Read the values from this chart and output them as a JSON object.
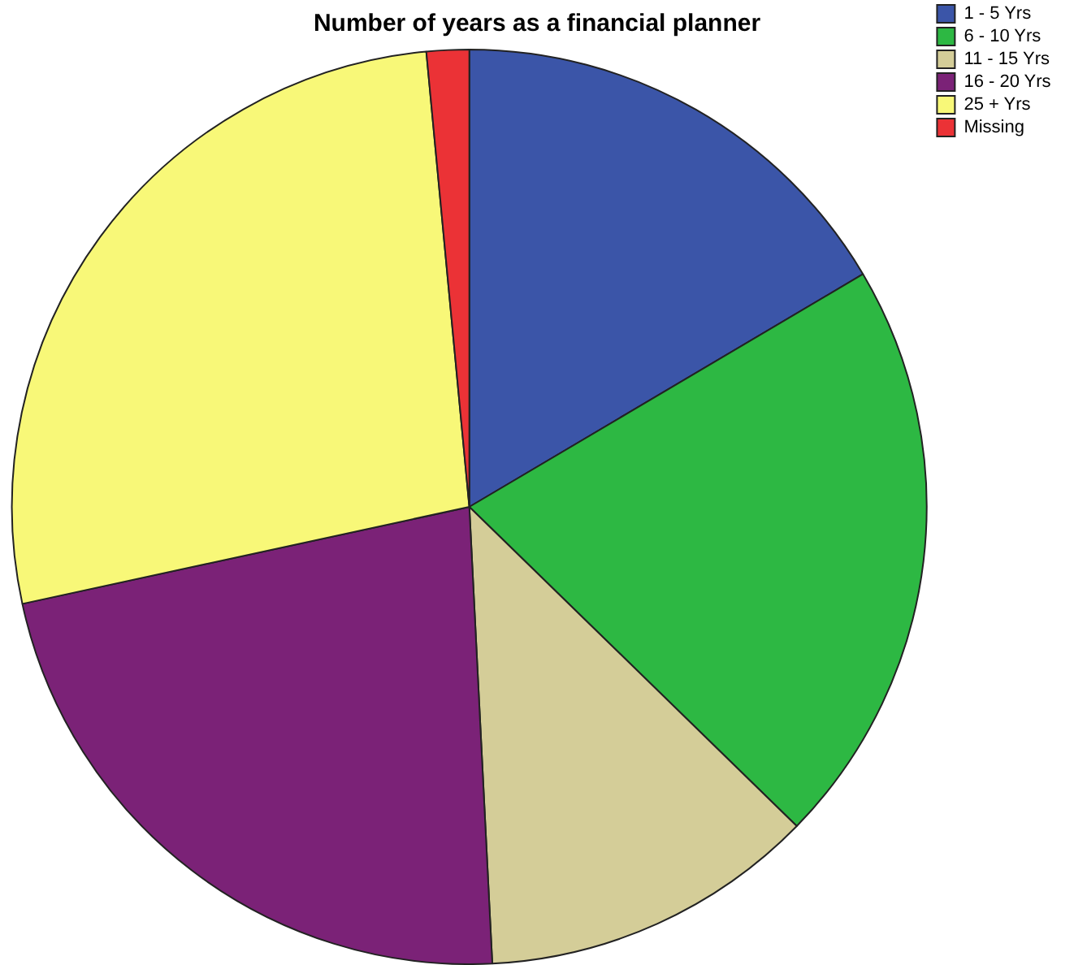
{
  "chart_data": {
    "type": "pie",
    "title": "Number of years as a financial planner",
    "categories": [
      "1 - 5 Yrs",
      "6 - 10 Yrs",
      "11 - 15 Yrs",
      "16 - 20 Yrs",
      "25 + Yrs",
      "Missing"
    ],
    "values": [
      16.5,
      20.8,
      11.9,
      22.4,
      26.9,
      1.5
    ],
    "colors": [
      "#3b55a8",
      "#2db843",
      "#d4cd98",
      "#7b2277",
      "#f8f878",
      "#eb3236"
    ],
    "legend": "top right"
  }
}
